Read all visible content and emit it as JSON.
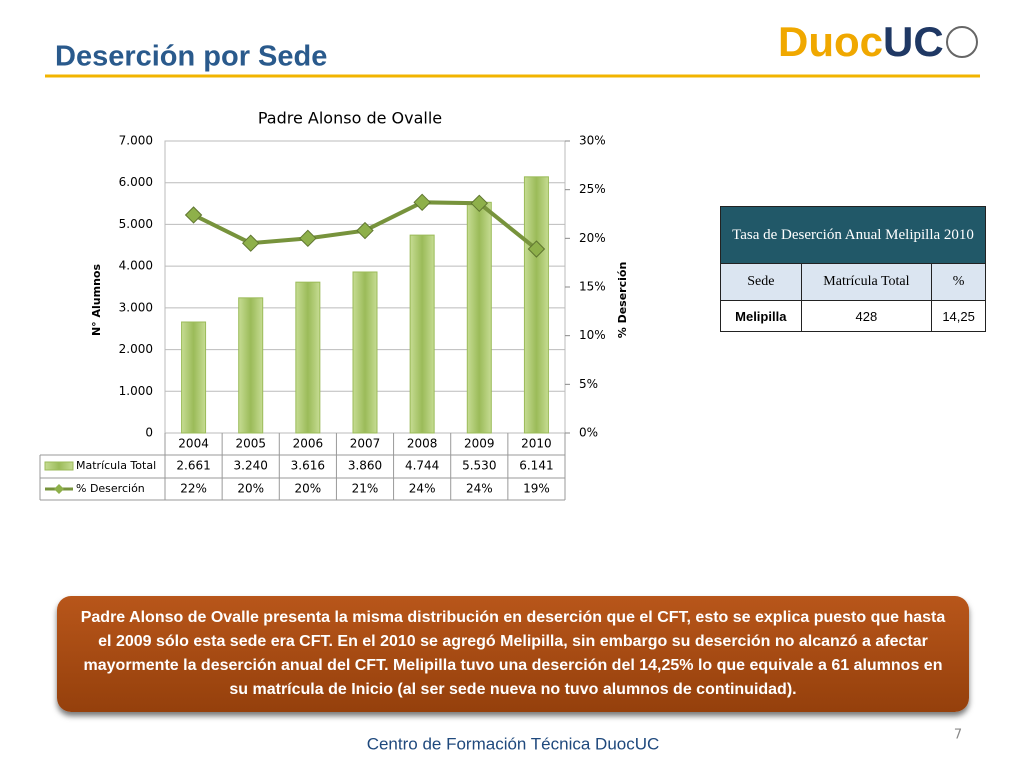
{
  "slide_title": "Deserción por Sede",
  "logo": {
    "part1": "Duoc",
    "part2": "UC"
  },
  "chart_data": {
    "type": "bar_line",
    "title": "Padre Alonso de Ovalle",
    "y_label": "N° Alumnos",
    "y2_label": "% Deserción",
    "categories": [
      "2004",
      "2005",
      "2006",
      "2007",
      "2008",
      "2009",
      "2010"
    ],
    "series": [
      {
        "name": "Matrícula Total",
        "color": "#9bbb59",
        "values": [
          2661,
          3240,
          3616,
          3860,
          4744,
          5530,
          6141
        ],
        "value_labels": [
          "2.661",
          "3.240",
          "3.616",
          "3.860",
          "4.744",
          "5.530",
          "6.141"
        ]
      },
      {
        "name": "% Deserción",
        "color": "#77933c",
        "axis": "y2",
        "values": [
          22.4,
          19.5,
          20.0,
          20.8,
          23.7,
          23.6,
          18.9
        ],
        "value_labels": [
          "22%",
          "20%",
          "20%",
          "21%",
          "24%",
          "24%",
          "19%"
        ]
      }
    ],
    "ylim": [
      0,
      7000
    ],
    "yticks": [
      0,
      {
        "value": 1000,
        "label": "1.000"
      },
      {
        "value": 2000,
        "label": "2.000"
      },
      {
        "value": 3000,
        "label": "3.000"
      },
      {
        "value": 4000,
        "label": "4.000"
      },
      {
        "value": 5000,
        "label": "5.000"
      },
      {
        "value": 6000,
        "label": "6.000"
      },
      {
        "value": 7000,
        "label": "7.000"
      }
    ],
    "y2lim": [
      0,
      30
    ],
    "y2ticks": [
      {
        "value": 0,
        "label": "0%"
      },
      {
        "value": 5,
        "label": "5%"
      },
      {
        "value": 10,
        "label": "10%"
      },
      {
        "value": 15,
        "label": "15%"
      },
      {
        "value": 20,
        "label": "20%"
      },
      {
        "value": 25,
        "label": "25%"
      },
      {
        "value": 30,
        "label": "30%"
      }
    ]
  },
  "table": {
    "title": "Tasa de Deserción Anual Melipilla 2010",
    "header": [
      "Sede",
      "Matrícula Total",
      "%"
    ],
    "rows": [
      [
        "Melipilla",
        "428",
        "14,25"
      ]
    ]
  },
  "note": "Padre Alonso de Ovalle presenta la misma distribución  en deserción que el CFT, esto se explica puesto que hasta el 2009 sólo esta sede era CFT. En el 2010 se agregó Melipilla, sin embargo su deserción no alcanzó a afectar mayormente la deserción anual del CFT. Melipilla tuvo una deserción del 14,25% lo que equivale a 61 alumnos en su matrícula de Inicio (al ser sede nueva no tuvo alumnos de continuidad).",
  "footer": "Centro de Formación Técnica DuocUC",
  "page_number": "7"
}
